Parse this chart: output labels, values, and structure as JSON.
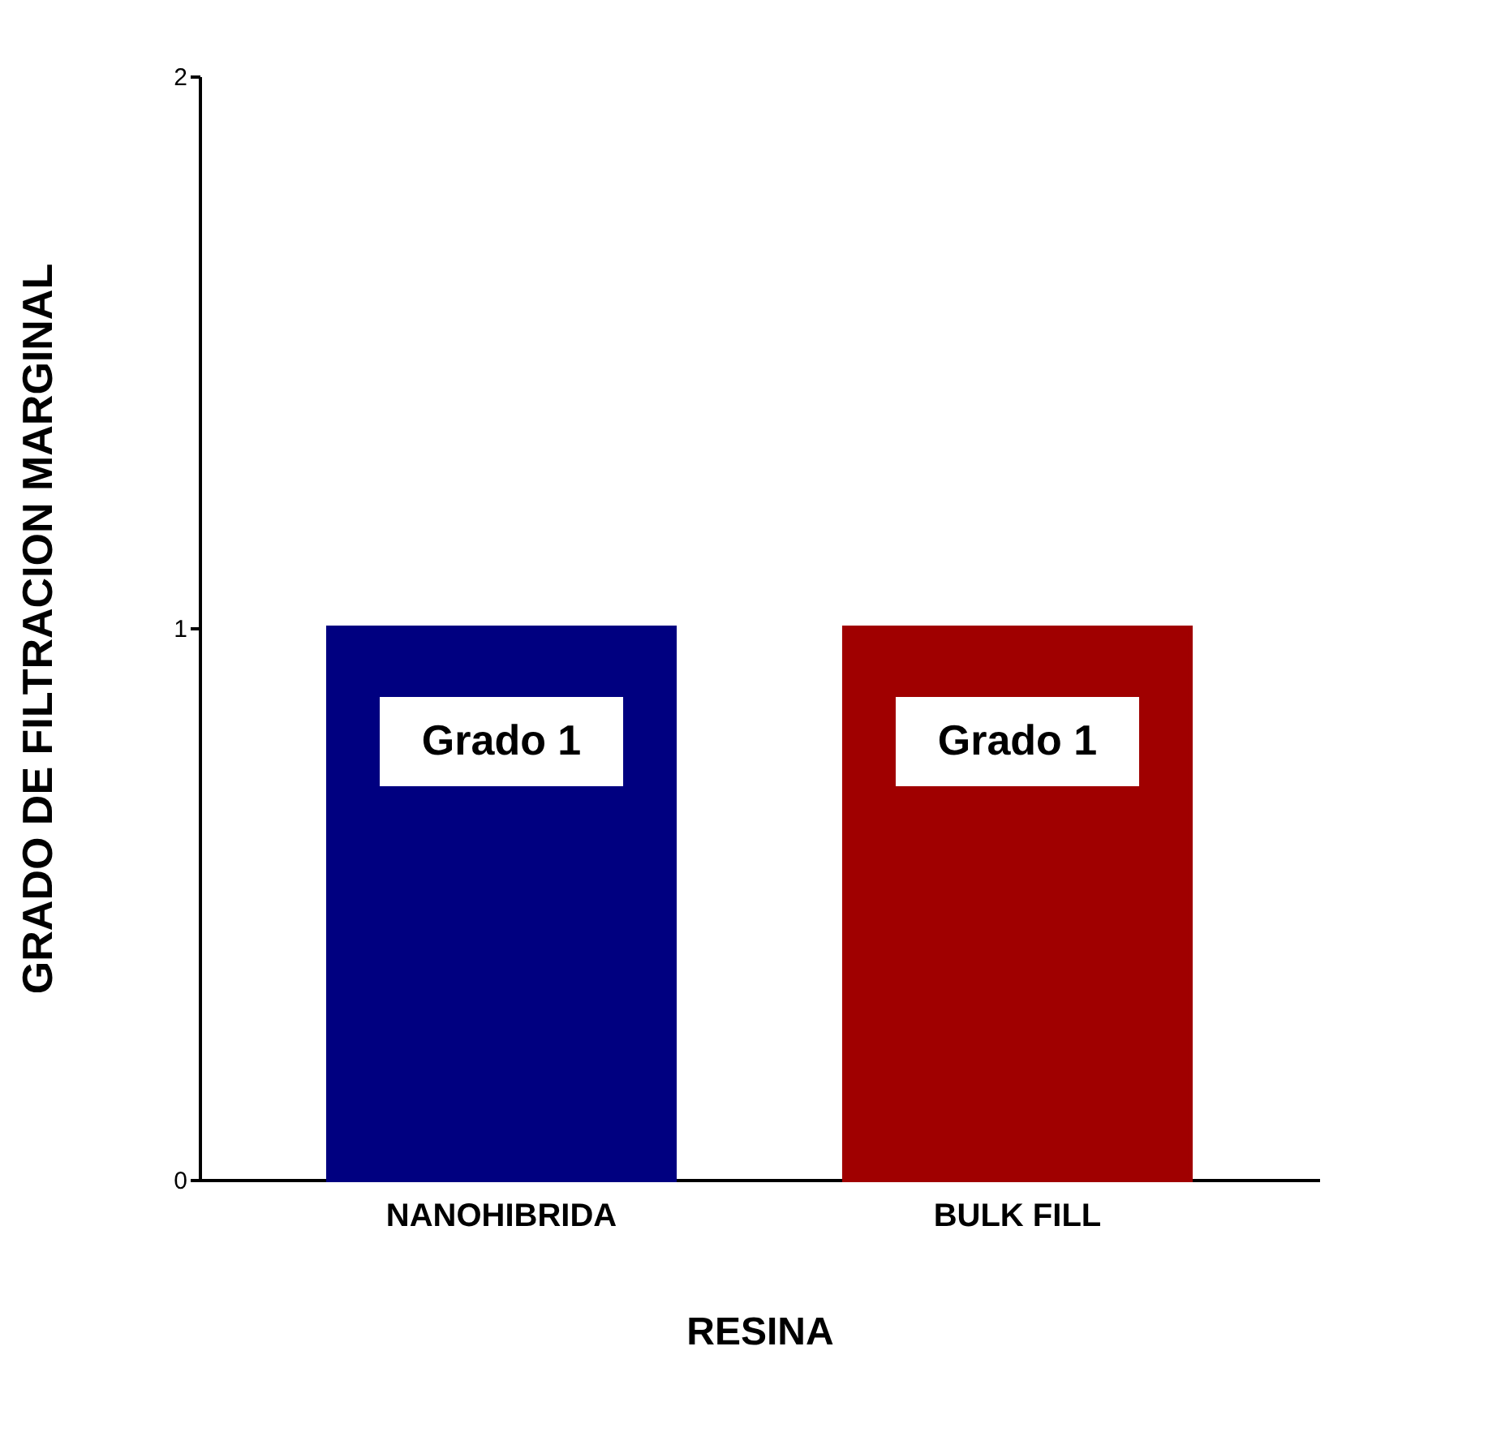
{
  "chart_data": {
    "type": "bar",
    "xlabel": "RESINA",
    "ylabel": "GRADO DE FILTRACION MARGINAL",
    "categories": [
      "NANOHIBRIDA",
      "BULK FILL"
    ],
    "values": [
      1,
      1
    ],
    "colors": [
      "#000080",
      "#a00000"
    ],
    "ylim": [
      0,
      2
    ],
    "yticks": [
      0,
      1,
      2
    ],
    "grid": false,
    "annotations": [
      "Grado 1",
      "Grado 1"
    ]
  }
}
